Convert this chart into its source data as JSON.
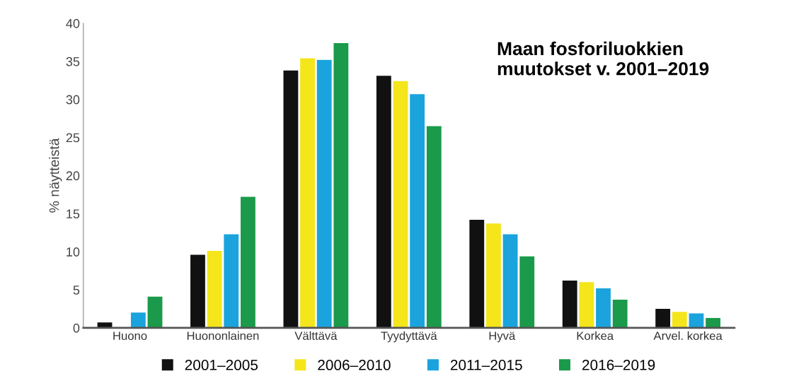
{
  "chart_data": {
    "type": "bar",
    "title": "Maan fosforiluokkien\nmuutokset v. 2001–2019",
    "ylabel": "% näytteistä",
    "categories": [
      "Huono",
      "Huononlainen",
      "Välttävä",
      "Tyydyttävä",
      "Hyvä",
      "Korkea",
      "Arvel. korkea"
    ],
    "series": [
      {
        "name": "2001–2005",
        "color": "#111111",
        "values": [
          0.7,
          9.6,
          33.8,
          33.1,
          14.2,
          6.2,
          2.5
        ]
      },
      {
        "name": "2006–2010",
        "color": "#f5e51b",
        "values": [
          0,
          10.1,
          35.4,
          32.4,
          13.7,
          6.0,
          2.1
        ]
      },
      {
        "name": "2011–2015",
        "color": "#1aa3dc",
        "values": [
          2.0,
          12.3,
          35.2,
          30.7,
          12.3,
          5.2,
          1.9
        ]
      },
      {
        "name": "2016–2019",
        "color": "#1a9a4a",
        "values": [
          4.1,
          17.2,
          37.4,
          26.5,
          9.4,
          3.7,
          1.3
        ]
      }
    ],
    "ylim": [
      0,
      40
    ],
    "yticks": [
      0,
      5,
      10,
      15,
      20,
      25,
      30,
      35,
      40
    ],
    "grid": false,
    "legend": "bottom"
  }
}
